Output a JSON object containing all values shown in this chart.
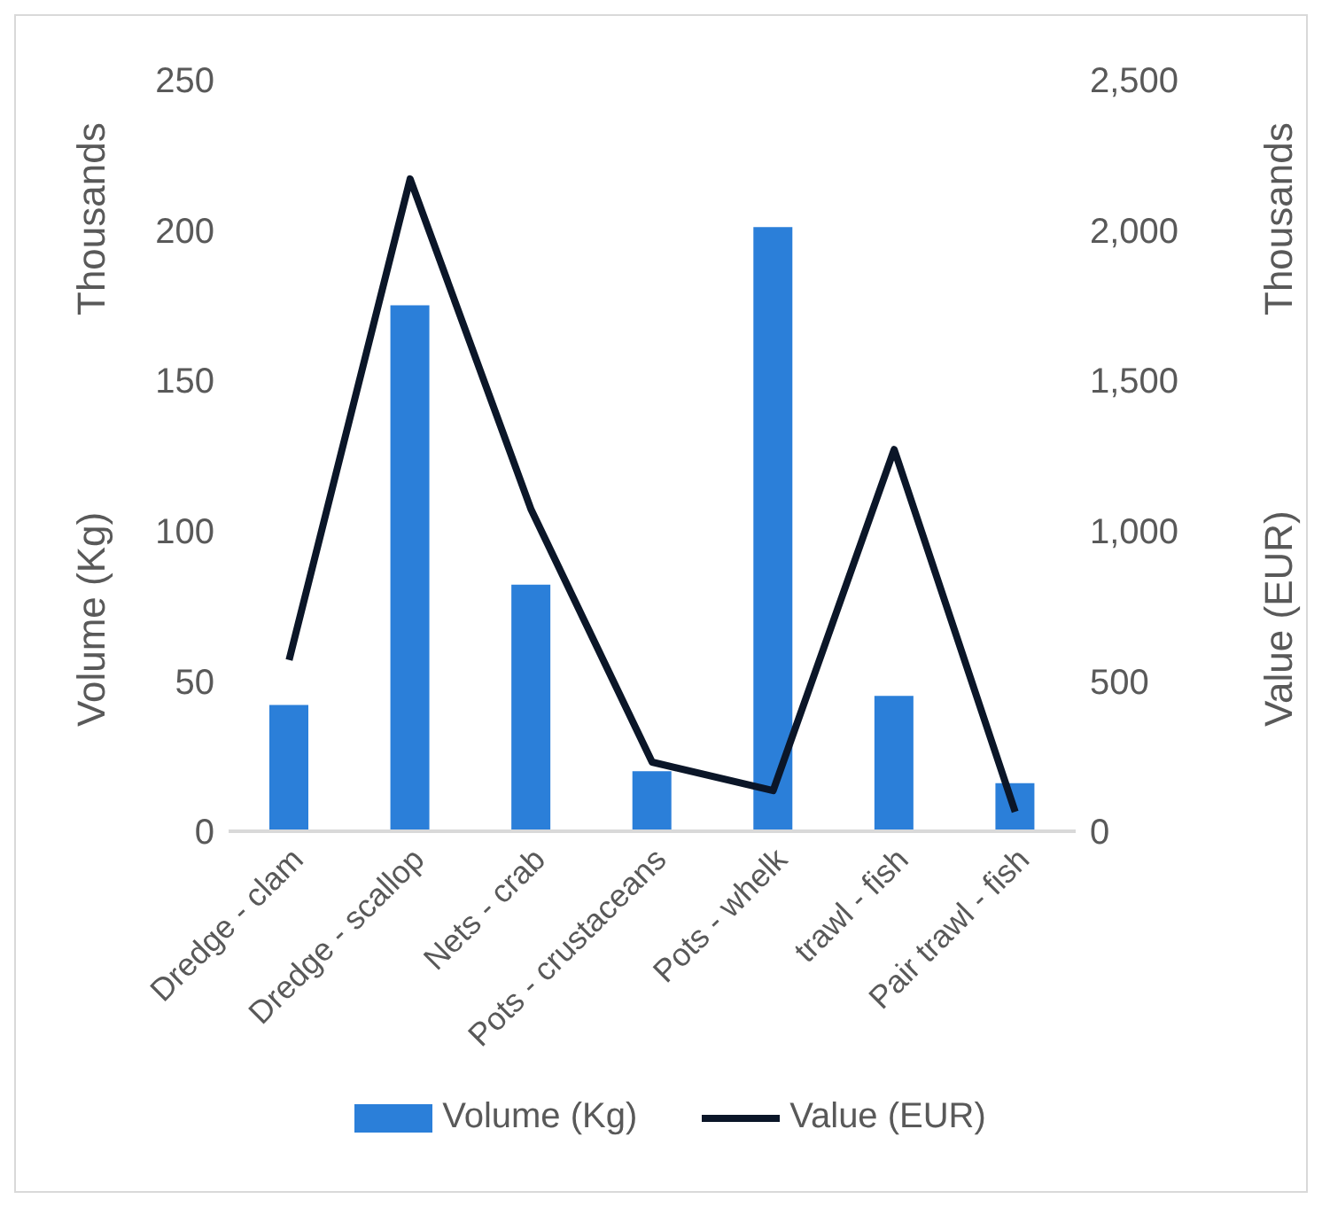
{
  "chart_data": {
    "type": "bar",
    "categories": [
      "Dredge - clam",
      "Dredge - scallop",
      "Nets - crab",
      "Pots - crustaceans",
      "Pots - whelk",
      "trawl - fish",
      "Pair trawl - fish"
    ],
    "series": [
      {
        "name": "Volume (Kg)",
        "color": "#2b7fd9",
        "values": [
          42,
          175,
          82,
          20,
          201,
          45,
          16
        ]
      },
      {
        "name": "Value (EUR)",
        "type": "line",
        "axis": "y2",
        "color": "#0b1628",
        "values": [
          570,
          2170,
          1070,
          230,
          135,
          1270,
          65
        ]
      }
    ],
    "ylabel": "Volume (Kg)",
    "y2label": "Value (EUR)",
    "annotations": [
      "Thousands",
      "Thousands"
    ],
    "ylim": [
      0,
      250
    ],
    "yticks": [
      0,
      50,
      100,
      150,
      200,
      250
    ],
    "y2lim": [
      0,
      2500
    ],
    "y2ticks": [
      0,
      500,
      {
        "value": 1000,
        "label": "1,000"
      },
      {
        "value": 1500,
        "label": "1,500"
      },
      {
        "value": 2000,
        "label": "2,000"
      },
      {
        "value": 2500,
        "label": "2,500"
      }
    ],
    "grid": false,
    "legend": "bottom",
    "marker": "none"
  }
}
